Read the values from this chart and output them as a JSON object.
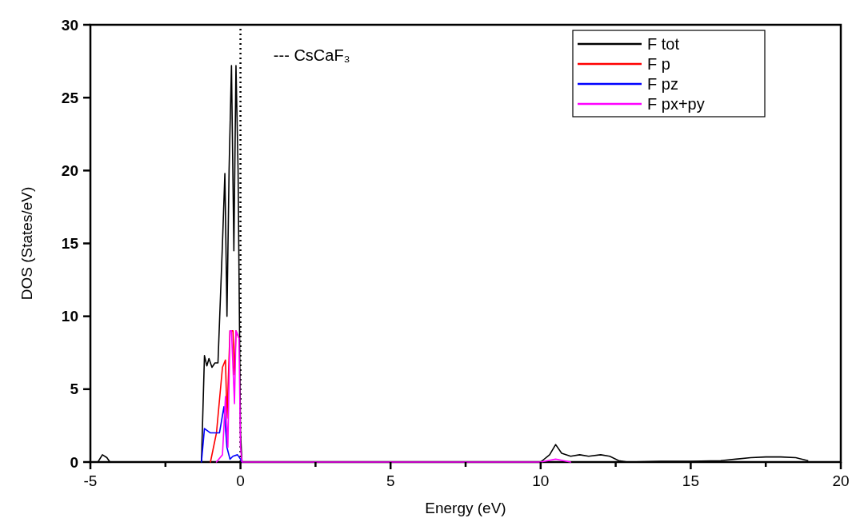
{
  "chart_data": {
    "type": "line",
    "xlabel": "Energy (eV)",
    "ylabel": "DOS (States/eV)",
    "xlim": [
      -5,
      20
    ],
    "ylim": [
      0,
      30
    ],
    "xticks": [
      -5,
      {
        "value": -2.5,
        "label": null
      },
      0,
      {
        "value": 2.5,
        "label": null
      },
      5,
      {
        "value": 7.5,
        "label": null
      },
      10,
      {
        "value": 12.5,
        "label": null
      },
      15,
      {
        "value": 17.5,
        "label": null
      },
      20
    ],
    "yticks": [
      0,
      5,
      10,
      15,
      20,
      25,
      30
    ],
    "grid": false,
    "legend": "top right",
    "line_style": "solid",
    "ref_lines": [
      {
        "axis": "x",
        "value": 0,
        "color": "#000000",
        "line_style": "dotted"
      }
    ],
    "annotations": [
      "--- CsCaF₃"
    ],
    "series": [
      {
        "name": "F tot",
        "color": "#000000",
        "x": [
          -4.75,
          -4.6,
          -4.45,
          -4.35,
          -1.3,
          -1.2,
          -1.12,
          -1.05,
          -0.95,
          -0.85,
          -0.75,
          -0.6,
          -0.52,
          -0.45,
          -0.38,
          -0.3,
          -0.22,
          -0.15,
          -0.08,
          0,
          0.05,
          10,
          10.3,
          10.5,
          10.7,
          11,
          11.3,
          11.6,
          12,
          12.3,
          12.6,
          12.9,
          14,
          15,
          16,
          16.5,
          17,
          17.5,
          18,
          18.5,
          18.9
        ],
        "values": [
          0,
          0.5,
          0.3,
          0,
          0,
          7.3,
          6.6,
          7.1,
          6.5,
          6.8,
          6.8,
          15,
          19.8,
          10,
          20,
          27.2,
          14.5,
          27.2,
          20,
          2,
          0,
          0,
          0.5,
          1.2,
          0.6,
          0.4,
          0.5,
          0.4,
          0.5,
          0.4,
          0.1,
          0,
          0.05,
          0.05,
          0.1,
          0.2,
          0.3,
          0.35,
          0.35,
          0.3,
          0.1
        ]
      },
      {
        "name": "F p",
        "color": "#ff0000",
        "x": [
          -1.0,
          -0.8,
          -0.6,
          -0.5,
          -0.45,
          -0.35,
          -0.25,
          -0.2,
          -0.15,
          -0.05
        ],
        "values": [
          0,
          2,
          6.5,
          7,
          3,
          9,
          9,
          6,
          9,
          8.5
        ]
      },
      {
        "name": "F pz",
        "color": "#0000ff",
        "x": [
          -1.3,
          -1.2,
          -1.0,
          -0.8,
          -0.7,
          -0.55,
          -0.45,
          -0.35,
          -0.25,
          -0.1,
          0,
          0.05
        ],
        "values": [
          0,
          2.3,
          2.0,
          2.0,
          2.0,
          3.8,
          1,
          0.2,
          0.4,
          0.5,
          0.2,
          0
        ]
      },
      {
        "name": "F px+py",
        "color": "#ff00ff",
        "x": [
          -0.8,
          -0.6,
          -0.5,
          -0.42,
          -0.35,
          -0.3,
          -0.2,
          -0.15,
          -0.05,
          0,
          0.05,
          10,
          10.5,
          11
        ],
        "values": [
          0,
          0.5,
          4.5,
          1,
          9,
          9,
          4,
          9,
          8.5,
          1,
          0,
          0,
          0.2,
          0
        ]
      }
    ]
  }
}
